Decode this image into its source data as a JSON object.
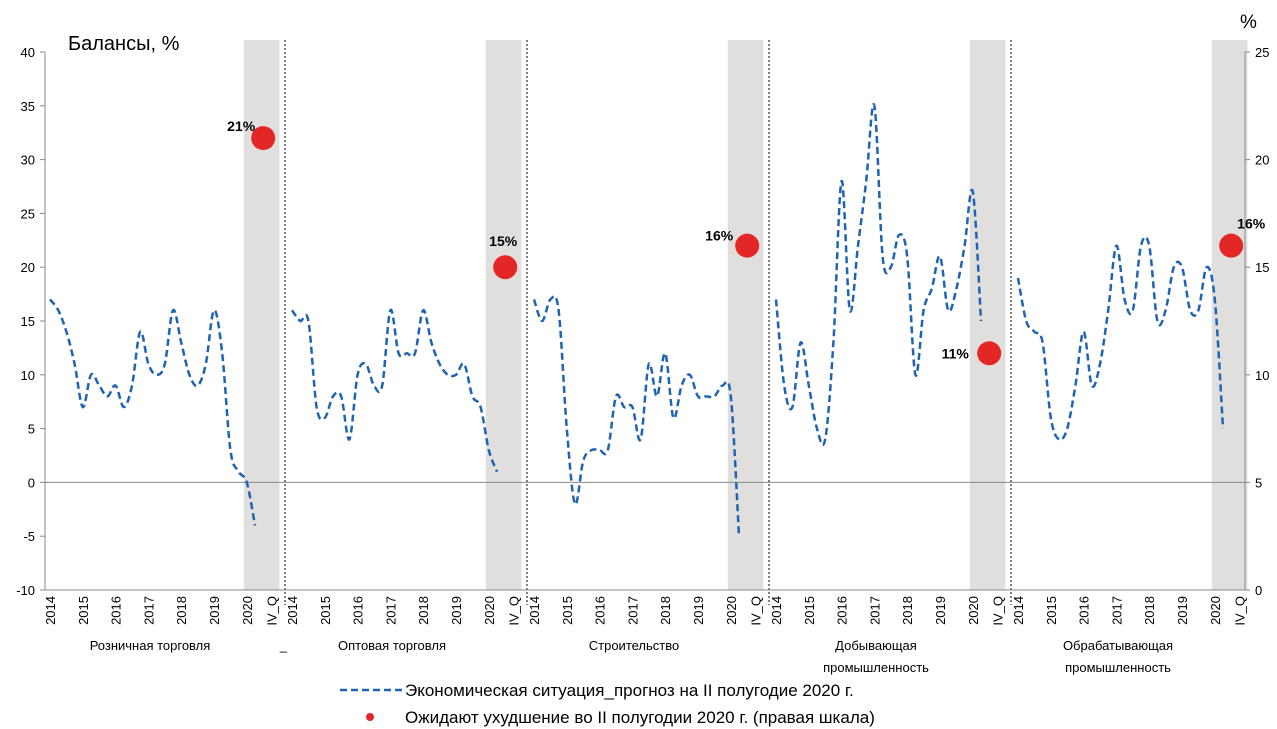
{
  "chart_data": {
    "type": "line",
    "title": "Балансы, %",
    "y2_title": "%",
    "ylim": [
      -10,
      40
    ],
    "yticks": [
      -10,
      -5,
      0,
      5,
      10,
      15,
      20,
      25,
      30,
      35,
      40
    ],
    "y2lim": [
      0,
      25
    ],
    "y2ticks": [
      0,
      5,
      10,
      15,
      20,
      25
    ],
    "zero_line": true,
    "series": [
      {
        "name": "Экономическая ситуация_прогноз на II полугодие 2020 г.",
        "color": "#1f64b4",
        "style": "dashed"
      },
      {
        "name": "Ожидают ухудшение во II полугодии 2020 г. (правая шкала)",
        "color": "#e32626",
        "axis": "y2"
      }
    ],
    "annotations": [
      "_"
    ],
    "panels": [
      {
        "label": [
          "Розничная торговля"
        ],
        "categories": [
          "2014",
          null,
          null,
          null,
          "2015",
          null,
          null,
          null,
          "2016",
          null,
          null,
          null,
          "2017",
          null,
          null,
          null,
          "2018",
          null,
          null,
          null,
          "2019",
          null,
          null,
          null,
          "2020",
          null,
          null,
          "IV_Q"
        ],
        "series": [
          {
            "values": [
              17,
              16,
              14,
              11,
              7,
              10,
              9,
              8,
              9,
              7,
              9,
              14,
              11,
              10,
              11,
              16,
              13,
              10,
              9,
              11,
              16,
              12,
              3,
              1,
              0,
              -4,
              null,
              null
            ]
          },
          {
            "values": [
              null,
              null,
              null,
              null,
              null,
              null,
              null,
              null,
              null,
              null,
              null,
              null,
              null,
              null,
              null,
              null,
              null,
              null,
              null,
              null,
              null,
              null,
              null,
              null,
              null,
              null,
              21,
              null
            ],
            "value_labels": [
              null,
              null,
              null,
              null,
              null,
              null,
              null,
              null,
              null,
              null,
              null,
              null,
              null,
              null,
              null,
              null,
              null,
              null,
              null,
              null,
              null,
              null,
              null,
              null,
              null,
              null,
              "21%",
              null
            ]
          }
        ]
      },
      {
        "label": [
          "Оптовая торговля"
        ],
        "categories": [
          "2014",
          null,
          null,
          null,
          "2015",
          null,
          null,
          null,
          "2016",
          null,
          null,
          null,
          "2017",
          null,
          null,
          null,
          "2018",
          null,
          null,
          null,
          "2019",
          null,
          null,
          null,
          "2020",
          null,
          null,
          "IV_Q"
        ],
        "series": [
          {
            "values": [
              16,
              15,
              15,
              7,
              6,
              8,
              8,
              4,
              10,
              11,
              9,
              9,
              16,
              12,
              12,
              12,
              16,
              13,
              11,
              10,
              10,
              11,
              8,
              7,
              3,
              1,
              null,
              null
            ]
          },
          {
            "values": [
              null,
              null,
              null,
              null,
              null,
              null,
              null,
              null,
              null,
              null,
              null,
              null,
              null,
              null,
              null,
              null,
              null,
              null,
              null,
              null,
              null,
              null,
              null,
              null,
              null,
              null,
              15,
              null
            ],
            "value_labels": [
              null,
              null,
              null,
              null,
              null,
              null,
              null,
              null,
              null,
              null,
              null,
              null,
              null,
              null,
              null,
              null,
              null,
              null,
              null,
              null,
              null,
              null,
              null,
              null,
              null,
              null,
              "15%",
              null
            ]
          }
        ]
      },
      {
        "label": [
          "Строительство"
        ],
        "categories": [
          "2014",
          null,
          null,
          null,
          "2015",
          null,
          null,
          null,
          "2016",
          null,
          null,
          null,
          "2017",
          null,
          null,
          null,
          "2018",
          null,
          null,
          null,
          "2019",
          null,
          null,
          null,
          "2020",
          null,
          null,
          "IV_Q"
        ],
        "series": [
          {
            "values": [
              17,
              15,
              17,
              16,
              5,
              -2,
              2,
              3,
              3,
              3,
              8,
              7,
              7,
              4,
              11,
              8,
              12,
              6,
              9,
              10,
              8,
              8,
              8,
              9,
              8,
              -5,
              null,
              null
            ]
          },
          {
            "values": [
              null,
              null,
              null,
              null,
              null,
              null,
              null,
              null,
              null,
              null,
              null,
              null,
              null,
              null,
              null,
              null,
              null,
              null,
              null,
              null,
              null,
              null,
              null,
              null,
              null,
              null,
              16,
              null
            ],
            "value_labels": [
              null,
              null,
              null,
              null,
              null,
              null,
              null,
              null,
              null,
              null,
              null,
              null,
              null,
              null,
              null,
              null,
              null,
              null,
              null,
              null,
              null,
              null,
              null,
              null,
              null,
              null,
              "16%",
              null
            ]
          }
        ]
      },
      {
        "label": [
          "Добывающая",
          "промышленность"
        ],
        "categories": [
          "2014",
          null,
          null,
          null,
          "2015",
          null,
          null,
          null,
          "2016",
          null,
          null,
          null,
          "2017",
          null,
          null,
          null,
          "2018",
          null,
          null,
          null,
          "2019",
          null,
          null,
          null,
          "2020",
          null,
          null,
          "IV_Q"
        ],
        "series": [
          {
            "values": [
              17,
              9,
              7,
              13,
              9,
              5,
              4,
              13,
              28,
              16,
              22,
              28,
              35,
              21,
              20,
              23,
              21,
              10,
              16,
              18,
              21,
              16,
              18,
              22,
              27,
              15,
              null,
              null
            ]
          },
          {
            "values": [
              null,
              null,
              null,
              null,
              null,
              null,
              null,
              null,
              null,
              null,
              null,
              null,
              null,
              null,
              null,
              null,
              null,
              null,
              null,
              null,
              null,
              null,
              null,
              null,
              null,
              null,
              11,
              null
            ],
            "value_labels": [
              null,
              null,
              null,
              null,
              null,
              null,
              null,
              null,
              null,
              null,
              null,
              null,
              null,
              null,
              null,
              null,
              null,
              null,
              null,
              null,
              null,
              null,
              null,
              null,
              null,
              null,
              "11%",
              null
            ]
          }
        ]
      },
      {
        "label": [
          "Обрабатывающая",
          "промышленность"
        ],
        "categories": [
          "2014",
          null,
          null,
          null,
          "2015",
          null,
          null,
          null,
          "2016",
          null,
          null,
          null,
          "2017",
          null,
          null,
          null,
          "2018",
          null,
          null,
          null,
          "2019",
          null,
          null,
          null,
          "2020",
          null,
          null,
          "IV_Q"
        ],
        "series": [
          {
            "values": [
              19,
              15,
              14,
              13,
              6,
              4,
              5,
              9,
              14,
              9,
              11,
              16,
              22,
              17,
              16,
              22,
              22,
              15,
              16,
              20,
              20,
              16,
              16,
              20,
              17,
              5,
              null,
              null
            ]
          },
          {
            "values": [
              null,
              null,
              null,
              null,
              null,
              null,
              null,
              null,
              null,
              null,
              null,
              null,
              null,
              null,
              null,
              null,
              null,
              null,
              null,
              null,
              null,
              null,
              null,
              null,
              null,
              null,
              16,
              null
            ],
            "value_labels": [
              null,
              null,
              null,
              null,
              null,
              null,
              null,
              null,
              null,
              null,
              null,
              null,
              null,
              null,
              null,
              null,
              null,
              null,
              null,
              null,
              null,
              null,
              null,
              null,
              null,
              null,
              "16%",
              null
            ]
          }
        ]
      }
    ]
  }
}
